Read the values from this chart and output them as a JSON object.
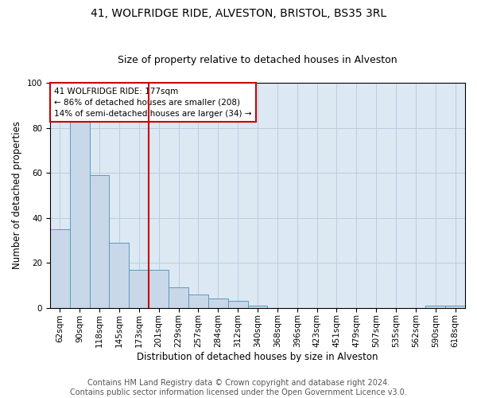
{
  "title": "41, WOLFRIDGE RIDE, ALVESTON, BRISTOL, BS35 3RL",
  "subtitle": "Size of property relative to detached houses in Alveston",
  "xlabel": "Distribution of detached houses by size in Alveston",
  "ylabel": "Number of detached properties",
  "categories": [
    "62sqm",
    "90sqm",
    "118sqm",
    "145sqm",
    "173sqm",
    "201sqm",
    "229sqm",
    "257sqm",
    "284sqm",
    "312sqm",
    "340sqm",
    "368sqm",
    "396sqm",
    "423sqm",
    "451sqm",
    "479sqm",
    "507sqm",
    "535sqm",
    "562sqm",
    "590sqm",
    "618sqm"
  ],
  "values": [
    35,
    84,
    59,
    29,
    17,
    17,
    9,
    6,
    4,
    3,
    1,
    0,
    0,
    0,
    0,
    0,
    0,
    0,
    0,
    1,
    1
  ],
  "bar_color": "#c8d8e8",
  "bar_edge_color": "#5a9abf",
  "property_line_x": 4.5,
  "property_line_color": "#cc0000",
  "annotation_text": "41 WOLFRIDGE RIDE: 177sqm\n← 86% of detached houses are smaller (208)\n14% of semi-detached houses are larger (34) →",
  "annotation_box_color": "#cc0000",
  "ylim": [
    0,
    100
  ],
  "yticks": [
    0,
    20,
    40,
    60,
    80,
    100
  ],
  "grid_color": "#b8cfe0",
  "plot_bg_color": "#dce8f2",
  "footer_line1": "Contains HM Land Registry data © Crown copyright and database right 2024.",
  "footer_line2": "Contains public sector information licensed under the Open Government Licence v3.0.",
  "title_fontsize": 10,
  "subtitle_fontsize": 9,
  "annotation_fontsize": 7.5,
  "axis_label_fontsize": 8.5,
  "tick_fontsize": 7.5,
  "footer_fontsize": 7
}
